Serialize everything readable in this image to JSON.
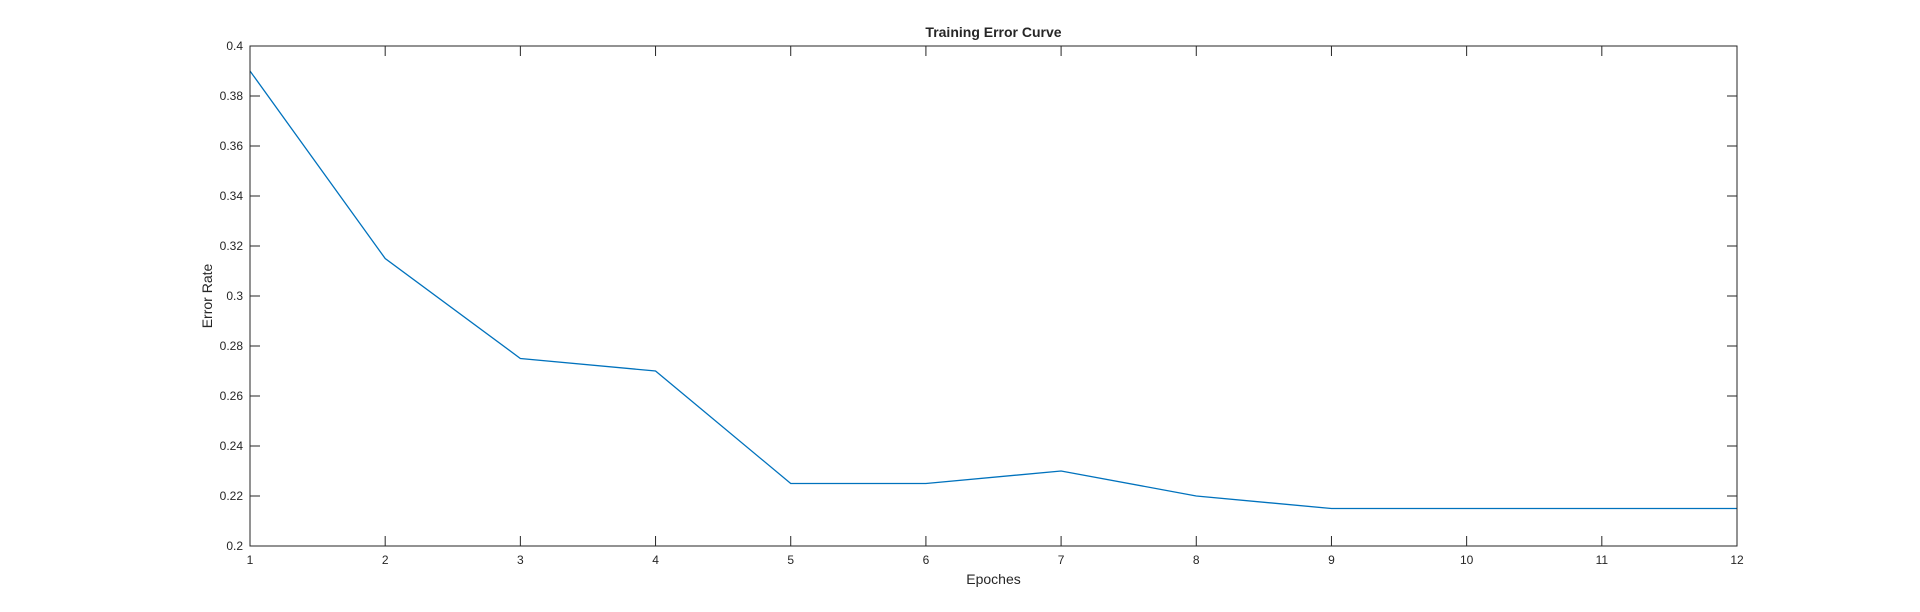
{
  "chart_data": {
    "type": "line",
    "title": "Training Error Curve",
    "xlabel": "Epoches",
    "ylabel": "Error Rate",
    "xlim": [
      1,
      12
    ],
    "ylim": [
      0.2,
      0.4
    ],
    "x_ticks": [
      "1",
      "2",
      "3",
      "4",
      "5",
      "6",
      "7",
      "8",
      "9",
      "10",
      "11",
      "12"
    ],
    "y_ticks": [
      "0.2",
      "0.22",
      "0.24",
      "0.26",
      "0.28",
      "0.3",
      "0.32",
      "0.34",
      "0.36",
      "0.38",
      "0.4"
    ],
    "grid": false,
    "x": [
      1,
      2,
      3,
      4,
      5,
      6,
      7,
      8,
      9,
      10,
      11,
      12
    ],
    "series": [
      {
        "values": [
          0.39,
          0.315,
          0.275,
          0.27,
          0.225,
          0.225,
          0.23,
          0.22,
          0.215,
          0.215,
          0.215,
          0.215
        ],
        "color": "#0072BD"
      }
    ]
  }
}
